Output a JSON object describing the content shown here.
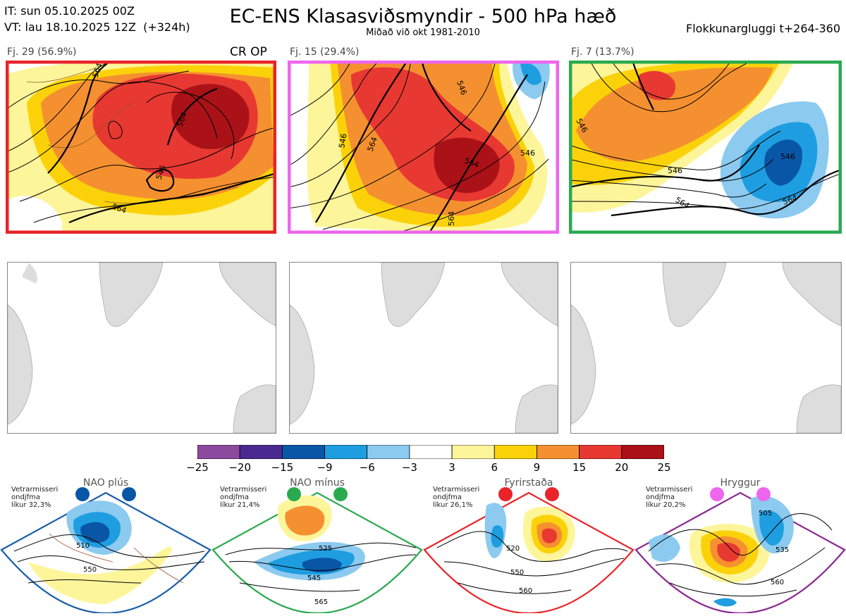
{
  "header": {
    "it_line": "IT: sun 05.10.2025 00Z",
    "vt_line": "VT: lau 18.10.2025 12Z  (+324h)",
    "title": "EC-ENS Klasasviðsmyndir - 500 hPa hæð",
    "subtitle": "Miðað við okt 1981-2010",
    "window": "Flokkunargluggi t+264-360"
  },
  "clusters": [
    {
      "label": "Fj. 29 (56.9%)",
      "tag": "CR OP",
      "border": "#e8242a",
      "contours": [
        "564",
        "546",
        "564",
        "564"
      ]
    },
    {
      "label": "Fj. 15 (29.4%)",
      "tag": "",
      "border": "#ee66ee",
      "contours": [
        "564",
        "546",
        "546",
        "564",
        "546",
        "564"
      ]
    },
    {
      "label": "Fj. 7 (13.7%)",
      "tag": "",
      "border": "#2aaa50",
      "contours": [
        "546",
        "546",
        "546",
        "564",
        "564"
      ]
    }
  ],
  "colorbar": {
    "ticks": [
      "−25",
      "−20",
      "−15",
      "−9",
      "−6",
      "−3",
      "3",
      "6",
      "9",
      "15",
      "20",
      "25"
    ],
    "colors": [
      "#8c4a9e",
      "#4a2a90",
      "#0a56a6",
      "#1e9ee0",
      "#8ccaf0",
      "#ffffff",
      "#fdf59a",
      "#fbd20a",
      "#f59030",
      "#e83832",
      "#aa1218"
    ]
  },
  "regimes": [
    {
      "title": "NAO plús",
      "text": "Vetrarmisseri\nondjfma\nlíkur 32,3%",
      "dot_color": "#0a56a6",
      "frame": "#1a5ea8",
      "labels": [
        "510",
        "550"
      ]
    },
    {
      "title": "NAO mínus",
      "text": "Vetrarmisseri\nondjfma\nlíkur 21,4%",
      "dot_color": "#2aaa50",
      "frame": "#2aaa50",
      "labels": [
        "525",
        "545",
        "565"
      ]
    },
    {
      "title": "Fyrirstaða",
      "text": "Vetrarmisseri\nondjfma\nlíkur 26,1%",
      "dot_color": "#e8242a",
      "frame": "#e8242a",
      "labels": [
        "520",
        "550",
        "560"
      ]
    },
    {
      "title": "Hryggur",
      "text": "Vetrarmisseri\nondjfma\nlíkur 20,2%",
      "dot_color": "#ee66ee",
      "frame": "#8a2a90",
      "labels": [
        "505",
        "535",
        "560"
      ]
    }
  ]
}
